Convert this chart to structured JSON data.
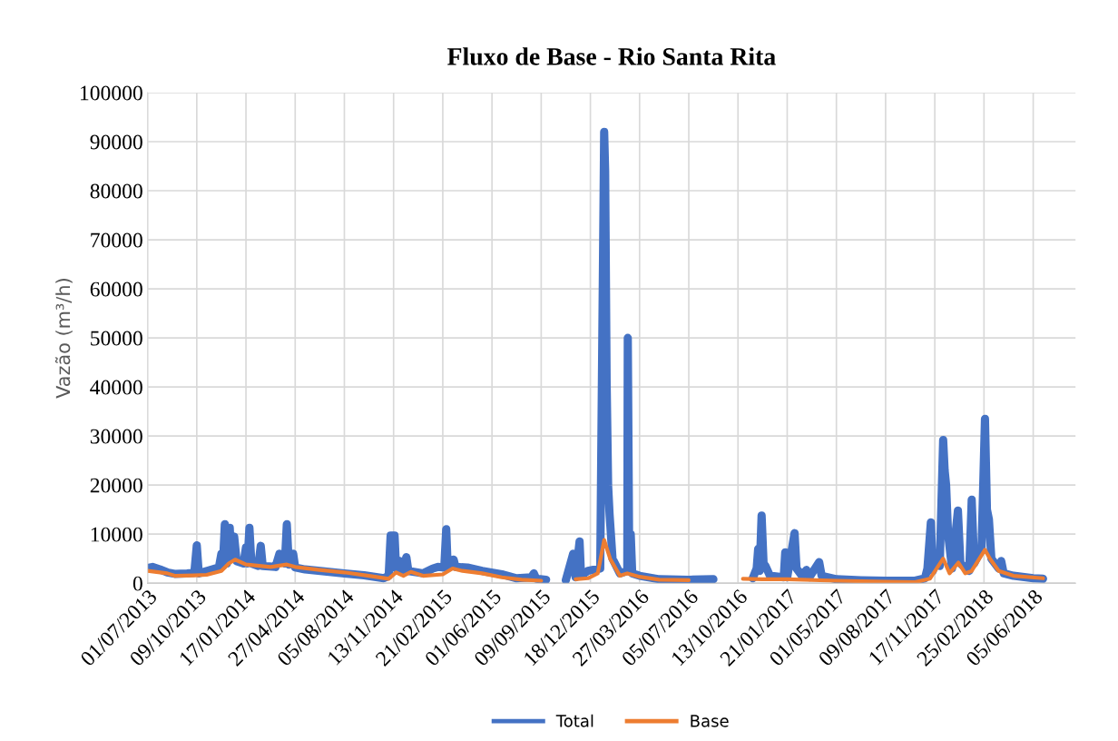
{
  "chart_data": {
    "type": "line",
    "title": "Fluxo de Base - Rio Santa Rita",
    "ylabel": "Vazão (m³/h)",
    "ylim": [
      0,
      100000
    ],
    "yticks": [
      0,
      10000,
      20000,
      30000,
      40000,
      50000,
      60000,
      70000,
      80000,
      90000,
      100000
    ],
    "xlim": [
      "2013-07-01",
      "2018-08-30"
    ],
    "xticks": [
      {
        "value": "2013-07-01",
        "label": "01/07/2013"
      },
      {
        "value": "2013-10-09",
        "label": "09/10/2013"
      },
      {
        "value": "2014-01-17",
        "label": "17/01/2014"
      },
      {
        "value": "2014-04-27",
        "label": "27/04/2014"
      },
      {
        "value": "2014-08-05",
        "label": "05/08/2014"
      },
      {
        "value": "2014-11-13",
        "label": "13/11/2014"
      },
      {
        "value": "2015-02-21",
        "label": "21/02/2015"
      },
      {
        "value": "2015-06-01",
        "label": "01/06/2015"
      },
      {
        "value": "2015-09-09",
        "label": "09/09/2015"
      },
      {
        "value": "2015-12-18",
        "label": "18/12/2015"
      },
      {
        "value": "2016-03-27",
        "label": "27/03/2016"
      },
      {
        "value": "2016-07-05",
        "label": "05/07/2016"
      },
      {
        "value": "2016-10-13",
        "label": "13/10/2016"
      },
      {
        "value": "2017-01-21",
        "label": "21/01/2017"
      },
      {
        "value": "2017-05-01",
        "label": "01/05/2017"
      },
      {
        "value": "2017-08-09",
        "label": "09/08/2017"
      },
      {
        "value": "2017-11-17",
        "label": "17/11/2017"
      },
      {
        "value": "2018-02-25",
        "label": "25/02/2018"
      },
      {
        "value": "2018-06-05",
        "label": "05/06/2018"
      }
    ],
    "grid": true,
    "legend": "bottom",
    "marker": "none",
    "line_style": "solid",
    "series": [
      {
        "name": "Total",
        "color": "#4472c4",
        "x": [
          "2013-07-01",
          "2013-07-11",
          "2013-07-26",
          "2013-08-10",
          "2013-08-25",
          "2013-09-19",
          "2013-10-04",
          "2013-10-09",
          "2013-10-13",
          "2013-11-03",
          "2013-11-23",
          "2013-11-28",
          "2013-12-01",
          "2013-12-05",
          "2013-12-09",
          "2013-12-15",
          "2013-12-18",
          "2013-12-24",
          "2013-12-29",
          "2014-01-12",
          "2014-01-17",
          "2014-01-20",
          "2014-01-24",
          "2014-01-28",
          "2014-02-11",
          "2014-02-16",
          "2014-02-20",
          "2014-03-18",
          "2014-03-26",
          "2014-04-06",
          "2014-04-10",
          "2014-04-14",
          "2014-04-23",
          "2014-04-27",
          "2014-05-17",
          "2014-06-26",
          "2014-08-05",
          "2014-09-14",
          "2014-10-24",
          "2014-11-03",
          "2014-11-07",
          "2014-11-15",
          "2014-11-18",
          "2014-11-26",
          "2014-12-01",
          "2014-12-09",
          "2014-12-13",
          "2015-01-12",
          "2015-02-01",
          "2015-02-11",
          "2015-02-24",
          "2015-02-28",
          "2015-03-03",
          "2015-03-15",
          "2015-03-19",
          "2015-04-12",
          "2015-05-12",
          "2015-06-21",
          "2015-07-21",
          "2015-08-20",
          "2015-08-25",
          "2015-08-30",
          "2015-09-19",
          "2015-10-09",
          "2015-10-29",
          "2015-11-13",
          "2015-11-18",
          "2015-11-26",
          "2015-11-29",
          "2015-12-13",
          "2016-01-07",
          "2016-01-15",
          "2016-01-17",
          "2016-01-20",
          "2016-01-23",
          "2016-01-26",
          "2016-02-01",
          "2016-02-16",
          "2016-03-02",
          "2016-03-03",
          "2016-03-06",
          "2016-03-09",
          "2016-03-12",
          "2016-03-27",
          "2016-05-06",
          "2016-07-05",
          "2016-08-24",
          "2016-09-13",
          "2016-11-12",
          "2016-11-20",
          "2016-11-23",
          "2016-11-26",
          "2016-11-30",
          "2016-12-04",
          "2016-12-08",
          "2016-12-17",
          "2017-01-14",
          "2017-01-17",
          "2017-01-21",
          "2017-02-05",
          "2017-02-09",
          "2017-02-20",
          "2017-03-01",
          "2017-03-07",
          "2017-03-27",
          "2017-04-01",
          "2017-05-01",
          "2017-06-20",
          "2017-08-09",
          "2017-10-08",
          "2017-10-28",
          "2017-11-02",
          "2017-11-09",
          "2017-11-13",
          "2017-11-22",
          "2017-11-27",
          "2017-12-04",
          "2017-12-07",
          "2017-12-10",
          "2017-12-14",
          "2017-12-22",
          "2018-01-03",
          "2018-01-08",
          "2018-01-26",
          "2018-01-31",
          "2018-02-05",
          "2018-02-20",
          "2018-02-27",
          "2018-03-03",
          "2018-03-07",
          "2018-03-12",
          "2018-03-27",
          "2018-04-01",
          "2018-04-06",
          "2018-04-26",
          "2018-06-05",
          "2018-06-25"
        ],
        "values": [
          3100,
          3300,
          2800,
          2200,
          1900,
          2000,
          2100,
          7700,
          2000,
          2600,
          3200,
          6000,
          3500,
          12000,
          4000,
          11300,
          5000,
          9500,
          4500,
          4000,
          7300,
          4000,
          11300,
          4000,
          3500,
          7600,
          3500,
          3300,
          6000,
          4000,
          12000,
          3800,
          6000,
          3200,
          2800,
          2400,
          2000,
          1600,
          1000,
          1500,
          9700,
          9700,
          3000,
          4500,
          2500,
          5300,
          2500,
          2000,
          3000,
          3300,
          3200,
          11000,
          3200,
          4800,
          3300,
          3200,
          2500,
          1800,
          1000,
          1200,
          2000,
          900,
          700,
          null,
          600,
          6000,
          1200,
          8500,
          1500,
          2500,
          3000,
          92000,
          84000,
          41000,
          20000,
          14000,
          5000,
          2000,
          2500,
          50000,
          3000,
          10000,
          2000,
          1500,
          800,
          700,
          800,
          null,
          1000,
          3000,
          7000,
          2500,
          13800,
          4000,
          3500,
          1500,
          1200,
          6300,
          1200,
          10200,
          3000,
          1500,
          2700,
          1200,
          4300,
          1500,
          800,
          600,
          500,
          500,
          1000,
          3000,
          12400,
          2500,
          6000,
          3500,
          29200,
          23000,
          20000,
          10000,
          3000,
          14800,
          4000,
          2500,
          17000,
          4000,
          7000,
          33500,
          15000,
          13000,
          5000,
          3000,
          4500,
          2000,
          1500,
          1000,
          900
        ]
      },
      {
        "name": "Base",
        "color": "#ed7d31",
        "x": [
          "2013-07-01",
          "2013-08-10",
          "2013-08-25",
          "2013-10-04",
          "2013-10-29",
          "2013-11-28",
          "2013-12-13",
          "2013-12-26",
          "2014-01-17",
          "2014-03-08",
          "2014-04-10",
          "2014-04-27",
          "2014-06-16",
          "2014-08-05",
          "2014-09-24",
          "2014-11-03",
          "2014-11-18",
          "2014-12-03",
          "2014-12-18",
          "2015-01-12",
          "2015-02-21",
          "2015-03-13",
          "2015-04-02",
          "2015-05-12",
          "2015-06-21",
          "2015-07-31",
          "2015-09-09",
          "2015-10-09",
          "2015-11-18",
          "2015-12-13",
          "2016-01-02",
          "2016-01-15",
          "2016-01-27",
          "2016-02-16",
          "2016-03-02",
          "2016-03-27",
          "2016-05-06",
          "2016-07-05",
          "2016-09-13",
          "2016-10-23",
          "2016-12-02",
          "2017-01-21",
          "2017-05-01",
          "2017-08-09",
          "2017-10-08",
          "2017-11-07",
          "2017-12-04",
          "2017-12-17",
          "2018-01-04",
          "2018-01-18",
          "2018-01-31",
          "2018-02-27",
          "2018-03-09",
          "2018-03-27",
          "2018-04-26",
          "2018-06-25"
        ],
        "values": [
          2500,
          2000,
          1500,
          1600,
          1700,
          2500,
          4000,
          4800,
          3800,
          3300,
          3800,
          3300,
          2700,
          2200,
          1500,
          900,
          2200,
          1500,
          2300,
          1500,
          1800,
          3000,
          2500,
          2000,
          1200,
          700,
          500,
          null,
          800,
          1000,
          2000,
          8800,
          5000,
          1500,
          2000,
          1300,
          700,
          600,
          null,
          900,
          800,
          800,
          500,
          300,
          200,
          900,
          5000,
          2000,
          4200,
          2000,
          2500,
          6800,
          5000,
          2500,
          1500,
          1000
        ]
      }
    ]
  }
}
